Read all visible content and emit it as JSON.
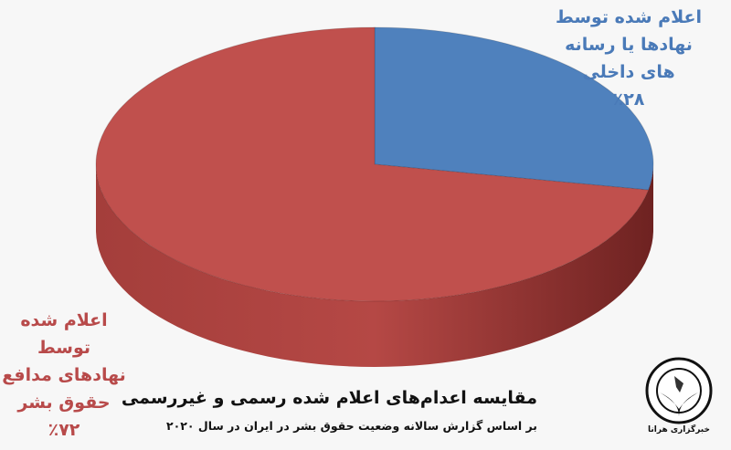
{
  "chart_data": {
    "type": "pie",
    "style": "3d",
    "title": "مقایسه اعدام‌های اعلام شده رسمی و غیررسمی",
    "subtitle": "بر اساس گزارش سالانه وضعیت حقوق بشر در ایران در سال ۲۰۲۰",
    "slices": [
      {
        "label_lines": [
          "اعلام شده توسط",
          "نهادها یا رسانه",
          "های داخلی",
          "٪۲۸"
        ],
        "value": 28,
        "color": "#4f81bd"
      },
      {
        "label_lines": [
          "اعلام شده توسط",
          "نهادهای مدافع",
          "حقوق بشر",
          "٪۷۲"
        ],
        "value": 72,
        "color": "#c0504d"
      }
    ]
  },
  "logo": {
    "ring_text": "HUMAN RIGHTS ACTIVISTS IN IRAN",
    "caption": "خبرگزاری هرانا"
  }
}
